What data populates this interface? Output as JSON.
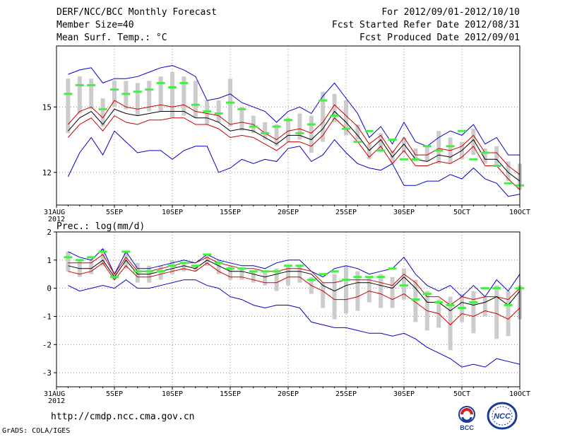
{
  "header": {
    "title": "DERF/NCC/BCC Monthly Forecast",
    "member_size": "Member Size=40",
    "variable": "Mean Surf. Temp.: °C",
    "forecast_range": "For 2012/09/01-2012/10/10",
    "start_date": "Fcst Started Refer Date 2012/08/31",
    "produced_date": "Fcst Produced Date 2012/09/01"
  },
  "footer": {
    "url": "http://cmdp.ncc.cma.gov.cn",
    "credit": "GrADS: COLA/IGES",
    "logo1_text": "BCC",
    "logo2_text": "NCC"
  },
  "colors": {
    "max_min": "#0000cc",
    "spread": "#cc0000",
    "mean": "#000000",
    "member_box": "#cccccc",
    "observation": "#44ee44"
  },
  "chart_data": [
    {
      "type": "line",
      "title": "Mean Surf. Temp.: °C",
      "x_tick_labels": [
        "31AUG\n2012",
        "5SEP",
        "10SEP",
        "15SEP",
        "20SEP",
        "25SEP",
        "30SEP",
        "5OCT",
        "10OCT"
      ],
      "x_tick_days": [
        0,
        5,
        10,
        15,
        20,
        25,
        30,
        35,
        40
      ],
      "y_ticks": [
        12,
        15
      ],
      "ylim": [
        10.5,
        17.8
      ],
      "x": [
        1,
        2,
        3,
        4,
        5,
        6,
        7,
        8,
        9,
        10,
        11,
        12,
        13,
        14,
        15,
        16,
        17,
        18,
        19,
        20,
        21,
        22,
        23,
        24,
        25,
        26,
        27,
        28,
        29,
        30,
        31,
        32,
        33,
        34,
        35,
        36,
        37,
        38,
        39,
        40
      ],
      "series": [
        {
          "name": "max",
          "values": [
            16.5,
            16.7,
            16.8,
            16.1,
            16.3,
            16.3,
            16.4,
            16.6,
            16.8,
            16.9,
            16.7,
            16.4,
            15.3,
            15.4,
            15.6,
            15.2,
            15.0,
            14.8,
            14.3,
            14.8,
            15.0,
            14.7,
            15.5,
            16.1,
            15.4,
            14.7,
            13.6,
            14.1,
            13.3,
            14.3,
            13.4,
            13.2,
            13.6,
            13.9,
            13.7,
            14.2,
            13.3,
            13.6,
            12.8,
            12.8
          ]
        },
        {
          "name": "upper",
          "values": [
            14.2,
            14.8,
            15.0,
            14.5,
            15.3,
            15.0,
            14.9,
            15.0,
            15.1,
            15.0,
            15.1,
            14.8,
            14.7,
            14.6,
            14.2,
            14.3,
            14.2,
            13.8,
            13.5,
            13.9,
            14.0,
            13.8,
            14.3,
            15.1,
            14.6,
            14.1,
            13.3,
            13.7,
            12.9,
            13.6,
            12.8,
            12.8,
            13.1,
            13.0,
            13.2,
            13.7,
            12.9,
            12.9,
            12.3,
            11.9
          ]
        },
        {
          "name": "mean",
          "values": [
            13.9,
            14.5,
            14.8,
            14.2,
            14.9,
            14.7,
            14.6,
            14.7,
            14.8,
            14.8,
            14.8,
            14.5,
            14.5,
            14.3,
            13.9,
            14.0,
            13.9,
            13.6,
            13.3,
            13.7,
            13.7,
            13.5,
            14.0,
            14.8,
            14.3,
            13.7,
            13.0,
            13.5,
            12.7,
            13.3,
            12.6,
            12.5,
            12.8,
            12.7,
            13.0,
            13.5,
            12.6,
            12.6,
            12.0,
            11.6
          ]
        },
        {
          "name": "lower",
          "values": [
            13.6,
            14.2,
            14.5,
            13.9,
            14.6,
            14.3,
            14.2,
            14.4,
            14.4,
            14.5,
            14.5,
            14.2,
            14.2,
            14.0,
            13.6,
            13.7,
            13.6,
            13.3,
            13.0,
            13.4,
            13.4,
            13.2,
            13.7,
            14.5,
            14.0,
            13.4,
            12.7,
            13.2,
            12.4,
            13.0,
            12.3,
            12.3,
            12.5,
            12.4,
            12.7,
            13.2,
            12.3,
            12.3,
            11.7,
            11.2
          ]
        },
        {
          "name": "min",
          "values": [
            11.8,
            12.9,
            13.6,
            12.8,
            13.9,
            13.4,
            12.9,
            13.0,
            13.0,
            12.6,
            13.0,
            13.2,
            13.2,
            12.0,
            12.2,
            12.6,
            12.4,
            12.6,
            12.5,
            13.1,
            13.2,
            12.5,
            12.8,
            13.5,
            12.9,
            12.4,
            12.2,
            12.1,
            12.4,
            11.4,
            11.4,
            11.6,
            11.6,
            11.9,
            11.7,
            12.2,
            11.7,
            11.5,
            10.9,
            11.0
          ]
        },
        {
          "name": "obs",
          "values": [
            15.6,
            16.0,
            16.0,
            14.9,
            15.8,
            15.6,
            15.7,
            15.8,
            16.1,
            15.9,
            16.1,
            15.1,
            14.8,
            14.7,
            15.2,
            14.9,
            14.1,
            13.8,
            14.1,
            14.4,
            13.8,
            14.2,
            15.3,
            14.6,
            14.0,
            13.4,
            13.9,
            13.0,
            13.5,
            12.6,
            12.6,
            13.2,
            13.0,
            13.2,
            13.9,
            12.6,
            12.9,
            12.3,
            11.5,
            11.4
          ]
        },
        {
          "name": "box_top",
          "values": [
            16.3,
            16.4,
            16.3,
            15.4,
            16.2,
            16.2,
            16.1,
            16.2,
            16.4,
            16.6,
            16.4,
            16.2,
            15.3,
            15.3,
            16.3,
            15.0,
            14.6,
            14.3,
            14.2,
            14.5,
            14.7,
            14.6,
            15.7,
            15.6,
            15.3,
            14.2,
            13.3,
            13.8,
            13.0,
            13.6,
            13.1,
            13.2,
            13.9,
            13.6,
            13.4,
            14.0,
            13.1,
            13.2,
            12.5,
            12.4
          ]
        },
        {
          "name": "box_bottom",
          "values": [
            13.8,
            14.7,
            14.9,
            14.1,
            15.0,
            14.9,
            14.6,
            14.8,
            14.8,
            14.5,
            14.6,
            14.5,
            14.2,
            14.3,
            14.1,
            13.9,
            13.8,
            13.5,
            13.2,
            13.4,
            13.5,
            12.9,
            13.4,
            14.3,
            13.7,
            13.5,
            12.6,
            13.0,
            12.4,
            12.9,
            12.5,
            12.5,
            12.4,
            12.4,
            12.6,
            12.8,
            12.4,
            12.3,
            11.6,
            11.2
          ]
        }
      ]
    },
    {
      "type": "line",
      "title": "Prec.: log(mm/d)",
      "x_tick_labels": [
        "31AUG\n2012",
        "5SEP",
        "10SEP",
        "15SEP",
        "20SEP",
        "25SEP",
        "30SEP",
        "5OCT",
        "10OCT"
      ],
      "x_tick_days": [
        0,
        5,
        10,
        15,
        20,
        25,
        30,
        35,
        40
      ],
      "y_ticks": [
        -3,
        -2,
        -1,
        0,
        1,
        2
      ],
      "ylim": [
        -3.5,
        2
      ],
      "x": [
        1,
        2,
        3,
        4,
        5,
        6,
        7,
        8,
        9,
        10,
        11,
        12,
        13,
        14,
        15,
        16,
        17,
        18,
        19,
        20,
        21,
        22,
        23,
        24,
        25,
        26,
        27,
        28,
        29,
        30,
        31,
        32,
        33,
        34,
        35,
        36,
        37,
        38,
        39,
        40
      ],
      "series": [
        {
          "name": "max",
          "values": [
            1.3,
            1.1,
            1.0,
            1.4,
            0.5,
            1.3,
            0.7,
            0.7,
            0.8,
            0.9,
            1.0,
            0.9,
            1.2,
            1.0,
            0.9,
            0.8,
            0.8,
            0.7,
            0.9,
            1.0,
            1.0,
            0.6,
            0.4,
            0.7,
            0.8,
            0.7,
            0.5,
            0.6,
            0.7,
            1.1,
            0.5,
            0.1,
            -0.1,
            0.1,
            -0.3,
            0.1,
            -0.3,
            0.3,
            -0.1,
            0.5
          ]
        },
        {
          "name": "upper",
          "values": [
            0.9,
            0.9,
            0.9,
            1.2,
            0.5,
            1.1,
            0.6,
            0.6,
            0.7,
            0.8,
            0.9,
            0.9,
            1.1,
            0.9,
            0.8,
            0.7,
            0.7,
            0.6,
            0.6,
            0.7,
            0.7,
            0.6,
            0.2,
            0.2,
            0.3,
            0.3,
            0.3,
            0.2,
            0.1,
            0.5,
            0.2,
            -0.3,
            -0.3,
            -0.6,
            -0.3,
            -0.4,
            -0.3,
            -0.3,
            -0.4,
            0.0
          ]
        },
        {
          "name": "mean",
          "values": [
            0.8,
            0.7,
            0.7,
            1.0,
            0.4,
            1.0,
            0.5,
            0.5,
            0.6,
            0.7,
            0.8,
            0.7,
            1.0,
            0.8,
            0.6,
            0.6,
            0.5,
            0.4,
            0.5,
            0.6,
            0.6,
            0.5,
            0.1,
            -0.1,
            0.1,
            0.2,
            0.2,
            0.1,
            0.0,
            0.4,
            0.0,
            -0.5,
            -0.5,
            -0.8,
            -0.5,
            -0.6,
            -0.5,
            -0.3,
            -0.6,
            -0.1
          ]
        },
        {
          "name": "lower",
          "values": [
            0.6,
            0.5,
            0.6,
            0.9,
            0.3,
            0.8,
            0.4,
            0.4,
            0.5,
            0.6,
            0.7,
            0.6,
            0.9,
            0.6,
            0.4,
            0.4,
            0.3,
            0.2,
            0.2,
            0.4,
            0.4,
            0.1,
            -0.1,
            -0.4,
            -0.4,
            -0.3,
            -0.1,
            -0.2,
            -0.4,
            -0.2,
            -0.5,
            -0.8,
            -0.9,
            -1.3,
            -0.9,
            -1.0,
            -0.8,
            -0.9,
            -1.1,
            -0.7
          ]
        },
        {
          "name": "min",
          "values": [
            0.1,
            -0.1,
            0.0,
            0.1,
            0.0,
            0.3,
            0.0,
            0.0,
            0.1,
            0.2,
            0.3,
            0.3,
            0.1,
            0.0,
            -0.3,
            -0.4,
            -0.6,
            -0.7,
            -0.6,
            -0.6,
            -0.7,
            -1.2,
            -1.3,
            -1.4,
            -1.4,
            -1.5,
            -1.6,
            -1.6,
            -1.7,
            -1.6,
            -1.8,
            -2.1,
            -2.3,
            -2.5,
            -2.8,
            -2.7,
            -2.8,
            -2.5,
            -2.6,
            -2.7
          ]
        },
        {
          "name": "obs",
          "values": [
            1.1,
            1.0,
            1.1,
            1.3,
            0.4,
            1.3,
            0.6,
            0.6,
            0.6,
            0.8,
            0.9,
            0.8,
            1.2,
            0.9,
            0.7,
            0.7,
            0.6,
            0.6,
            0.6,
            0.8,
            0.8,
            0.3,
            0.5,
            0.6,
            0.3,
            0.4,
            0.4,
            0.4,
            0.7,
            0.1,
            -0.4,
            -0.2,
            -0.5,
            -0.6,
            -0.7,
            -0.5,
            0.0,
            0.0,
            -0.6,
            0.0
          ]
        },
        {
          "name": "box_top",
          "values": [
            1.3,
            1.0,
            1.0,
            1.4,
            0.6,
            1.3,
            0.9,
            0.8,
            0.8,
            1.0,
            0.9,
            0.8,
            1.2,
            1.0,
            0.8,
            0.7,
            0.6,
            0.6,
            0.7,
            0.8,
            0.8,
            0.4,
            0.2,
            0.5,
            0.8,
            0.6,
            0.4,
            0.5,
            0.4,
            0.7,
            0.3,
            -0.1,
            -0.4,
            -0.3,
            -0.2,
            -0.1,
            -0.3,
            0.1,
            -0.1,
            0.1
          ]
        },
        {
          "name": "box_bottom",
          "values": [
            0.6,
            0.4,
            0.5,
            0.8,
            0.3,
            0.7,
            0.2,
            0.2,
            0.3,
            0.5,
            0.6,
            0.6,
            0.8,
            0.5,
            0.3,
            0.3,
            0.2,
            0.1,
            -0.1,
            0.1,
            0.2,
            -0.2,
            -0.7,
            -1.1,
            -0.9,
            -0.8,
            -0.5,
            -0.7,
            -0.7,
            -0.4,
            -1.2,
            -1.5,
            -1.4,
            -2.2,
            -1.2,
            -1.6,
            -1.0,
            -1.8,
            -1.7,
            -1.1
          ]
        }
      ]
    }
  ]
}
